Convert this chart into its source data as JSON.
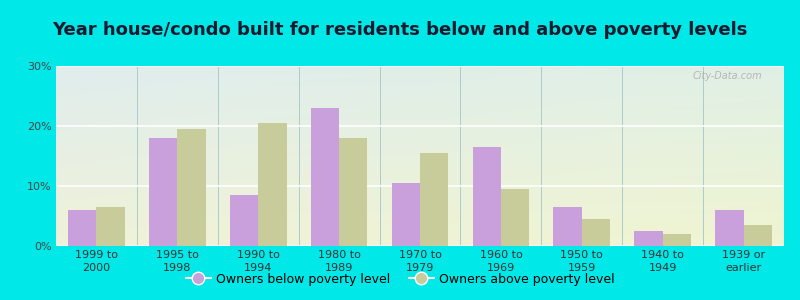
{
  "title": "Year house/condo built for residents below and above poverty levels",
  "categories": [
    "1999 to\n2000",
    "1995 to\n1998",
    "1990 to\n1994",
    "1980 to\n1989",
    "1970 to\n1979",
    "1960 to\n1969",
    "1950 to\n1959",
    "1940 to\n1949",
    "1939 or\nearlier"
  ],
  "below_poverty": [
    6.0,
    18.0,
    8.5,
    23.0,
    10.5,
    16.5,
    6.5,
    2.5,
    6.0
  ],
  "above_poverty": [
    6.5,
    19.5,
    20.5,
    18.0,
    15.5,
    9.5,
    4.5,
    2.0,
    3.5
  ],
  "below_color": "#c9a0dc",
  "above_color": "#c8cc9a",
  "background_outer": "#00e8e8",
  "ylim": [
    0,
    30
  ],
  "yticks": [
    0,
    10,
    20,
    30
  ],
  "ytick_labels": [
    "0%",
    "10%",
    "20%",
    "30%"
  ],
  "legend_below": "Owners below poverty level",
  "legend_above": "Owners above poverty level",
  "bar_width": 0.35,
  "title_fontsize": 13,
  "tick_fontsize": 8,
  "legend_fontsize": 9
}
